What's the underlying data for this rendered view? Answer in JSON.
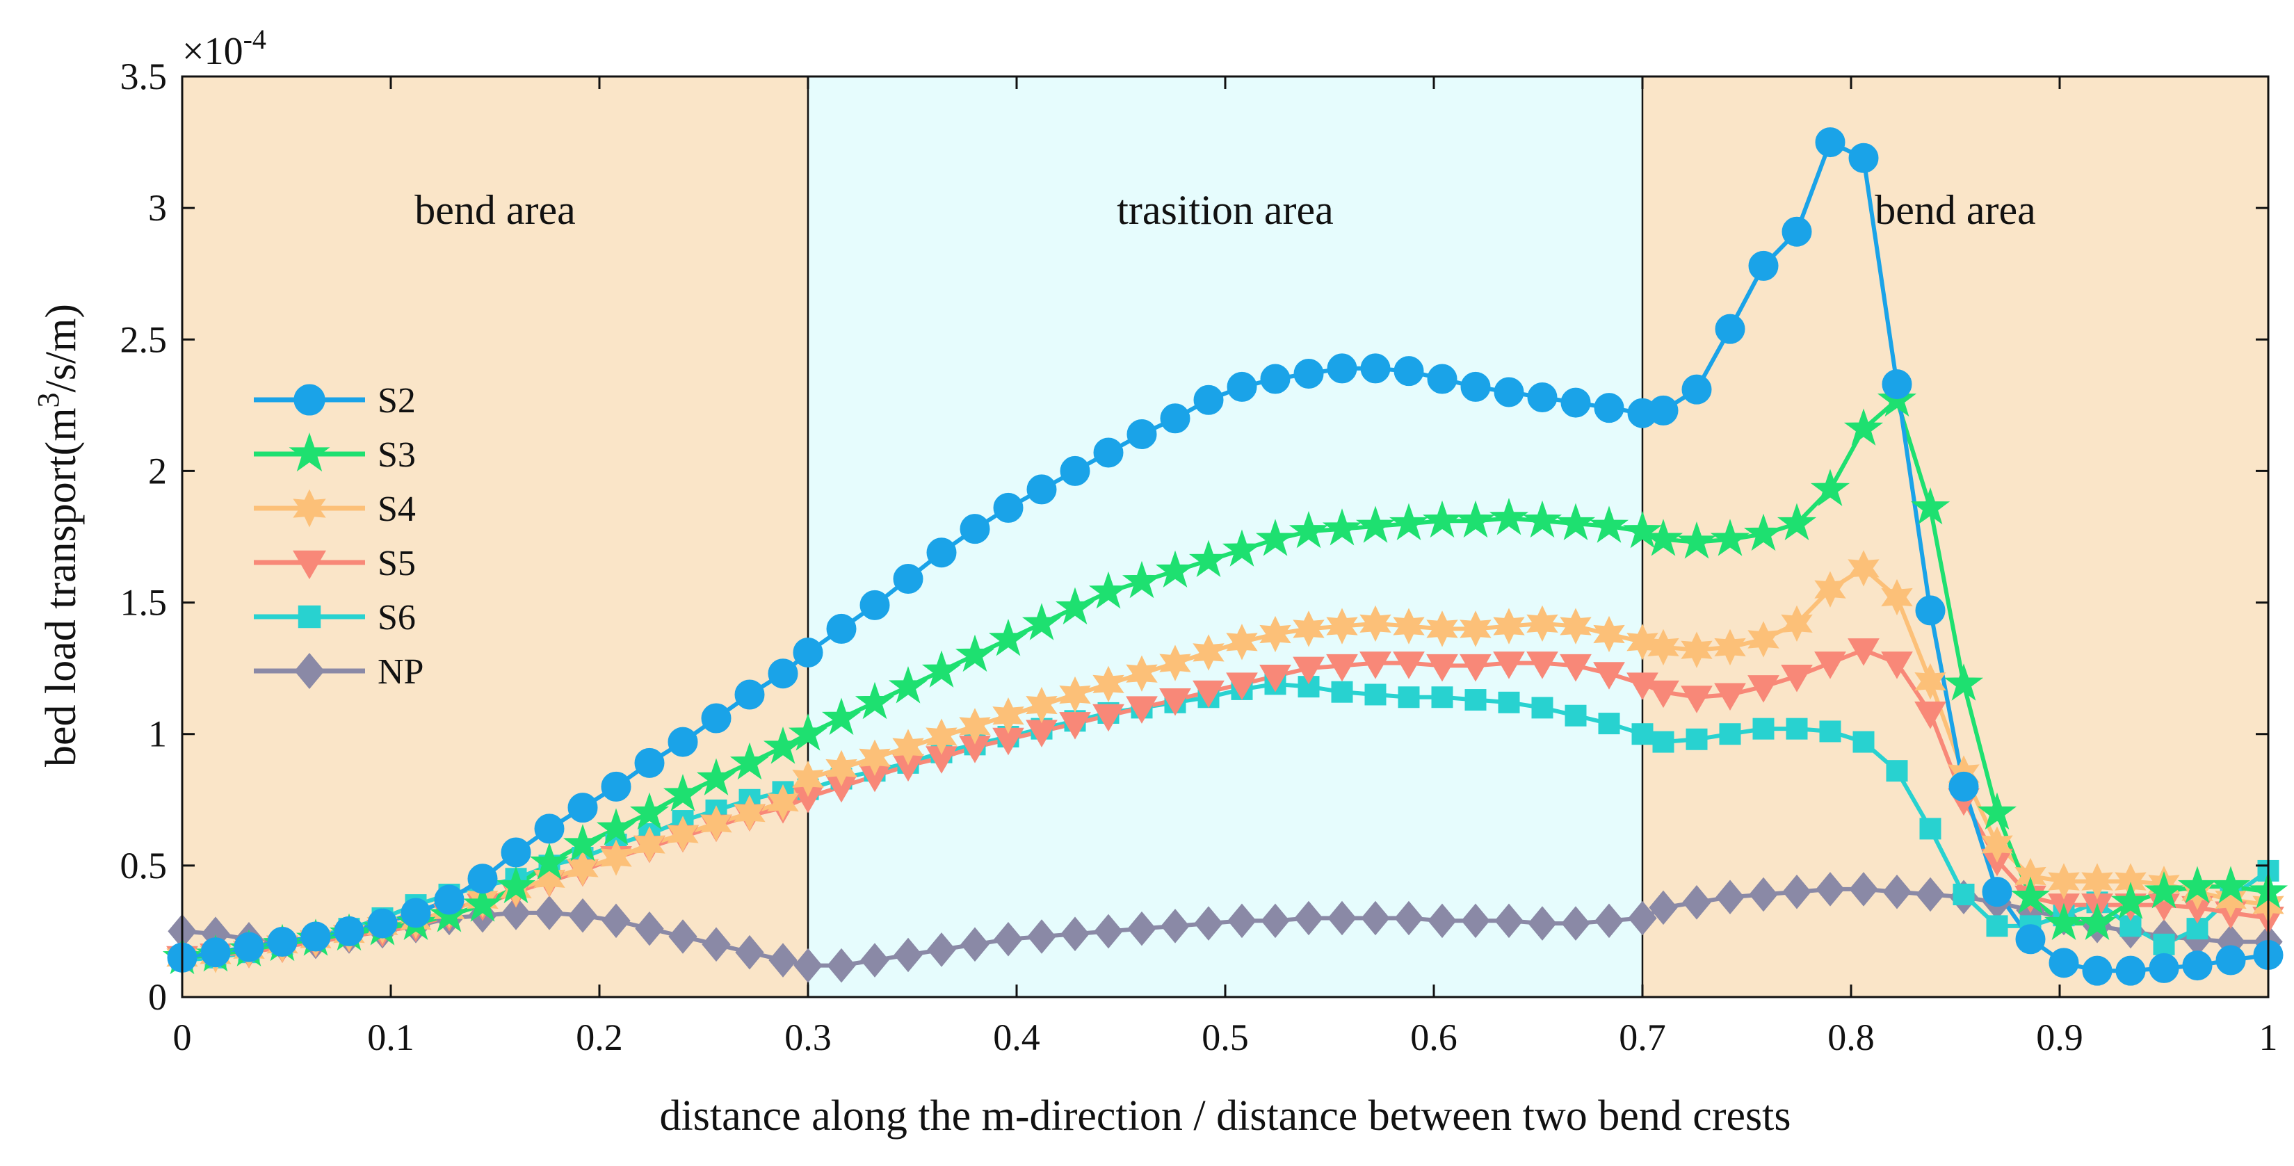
{
  "chart_data": {
    "type": "line",
    "title": "",
    "xlabel": "distance along the m-direction / distance between two bend crests",
    "ylabel_parts": {
      "prefix": "bed load transport(m",
      "sup": "3",
      "suffix": "/s/m)"
    },
    "y_exponent": {
      "base": "×10",
      "power": "-4"
    },
    "xlim": [
      0,
      1
    ],
    "ylim": [
      0,
      3.5
    ],
    "x_ticks": [
      0,
      0.1,
      0.2,
      0.3,
      0.4,
      0.5,
      0.6,
      0.7,
      0.8,
      0.9,
      1
    ],
    "x_tick_labels": [
      "0",
      "0.1",
      "0.2",
      "0.3",
      "0.4",
      "0.5",
      "0.6",
      "0.7",
      "0.8",
      "0.9",
      "1"
    ],
    "y_ticks": [
      0,
      0.5,
      1,
      1.5,
      2,
      2.5,
      3,
      3.5
    ],
    "y_tick_labels": [
      "0",
      "0.5",
      "1",
      "1.5",
      "2",
      "2.5",
      "3",
      "3.5"
    ],
    "regions": [
      {
        "label": "bend area",
        "x0": 0,
        "x1": 0.3,
        "color": "#fae5c8"
      },
      {
        "label": "trasition area",
        "x0": 0.3,
        "x1": 0.7,
        "color": "#e6fcfd"
      },
      {
        "label": "bend area",
        "x0": 0.7,
        "x1": 1,
        "color": "#fae5c8"
      }
    ],
    "legend_position": "center-left",
    "x": [
      0,
      0.016,
      0.032,
      0.048,
      0.064,
      0.08,
      0.096,
      0.112,
      0.128,
      0.144,
      0.16,
      0.176,
      0.192,
      0.208,
      0.224,
      0.24,
      0.256,
      0.272,
      0.288,
      0.3,
      0.316,
      0.332,
      0.348,
      0.364,
      0.38,
      0.396,
      0.412,
      0.428,
      0.444,
      0.46,
      0.476,
      0.492,
      0.508,
      0.524,
      0.54,
      0.556,
      0.572,
      0.588,
      0.604,
      0.62,
      0.636,
      0.652,
      0.668,
      0.684,
      0.7,
      0.71,
      0.726,
      0.742,
      0.758,
      0.774,
      0.79,
      0.806,
      0.822,
      0.838,
      0.854,
      0.87,
      0.886,
      0.902,
      0.918,
      0.934,
      0.95,
      0.966,
      0.982,
      1
    ],
    "series": [
      {
        "name": "S2",
        "color": "#1aa3e8",
        "marker": "circle",
        "values": [
          0.15,
          0.17,
          0.19,
          0.21,
          0.23,
          0.25,
          0.28,
          0.32,
          0.37,
          0.45,
          0.55,
          0.64,
          0.72,
          0.8,
          0.89,
          0.97,
          1.06,
          1.15,
          1.23,
          1.31,
          1.4,
          1.49,
          1.59,
          1.69,
          1.78,
          1.86,
          1.93,
          2.0,
          2.07,
          2.14,
          2.2,
          2.27,
          2.32,
          2.35,
          2.37,
          2.39,
          2.39,
          2.38,
          2.35,
          2.32,
          2.3,
          2.28,
          2.26,
          2.24,
          2.22,
          2.23,
          2.31,
          2.54,
          2.78,
          2.91,
          3.25,
          3.19,
          2.33,
          1.47,
          0.8,
          0.4,
          0.22,
          0.13,
          0.1,
          0.1,
          0.11,
          0.12,
          0.14,
          0.16
        ]
      },
      {
        "name": "S3",
        "color": "#1ee070",
        "marker": "star",
        "values": [
          0.15,
          0.16,
          0.18,
          0.2,
          0.22,
          0.24,
          0.26,
          0.28,
          0.31,
          0.35,
          0.42,
          0.51,
          0.58,
          0.64,
          0.7,
          0.77,
          0.83,
          0.89,
          0.95,
          1.0,
          1.06,
          1.12,
          1.18,
          1.24,
          1.3,
          1.36,
          1.42,
          1.48,
          1.54,
          1.58,
          1.62,
          1.66,
          1.7,
          1.74,
          1.77,
          1.78,
          1.79,
          1.8,
          1.81,
          1.81,
          1.82,
          1.81,
          1.8,
          1.79,
          1.77,
          1.74,
          1.73,
          1.74,
          1.76,
          1.8,
          1.93,
          2.16,
          2.27,
          1.86,
          1.19,
          0.7,
          0.38,
          0.28,
          0.28,
          0.36,
          0.4,
          0.42,
          0.42,
          0.4
        ]
      },
      {
        "name": "S4",
        "color": "#fcc078",
        "marker": "star6",
        "values": [
          0.15,
          0.16,
          0.18,
          0.2,
          0.22,
          0.24,
          0.27,
          0.29,
          0.33,
          0.37,
          0.41,
          0.45,
          0.49,
          0.53,
          0.58,
          0.62,
          0.66,
          0.7,
          0.74,
          0.83,
          0.87,
          0.91,
          0.95,
          0.99,
          1.03,
          1.07,
          1.11,
          1.15,
          1.19,
          1.23,
          1.27,
          1.31,
          1.35,
          1.38,
          1.4,
          1.41,
          1.42,
          1.41,
          1.4,
          1.4,
          1.41,
          1.42,
          1.41,
          1.38,
          1.35,
          1.33,
          1.32,
          1.33,
          1.36,
          1.42,
          1.55,
          1.63,
          1.52,
          1.2,
          0.85,
          0.58,
          0.46,
          0.44,
          0.44,
          0.44,
          0.43,
          0.4,
          0.37,
          0.35
        ]
      },
      {
        "name": "S5",
        "color": "#f88878",
        "marker": "triangle-down",
        "values": [
          0.15,
          0.16,
          0.17,
          0.19,
          0.21,
          0.23,
          0.25,
          0.27,
          0.31,
          0.35,
          0.4,
          0.44,
          0.48,
          0.53,
          0.57,
          0.61,
          0.65,
          0.69,
          0.72,
          0.76,
          0.8,
          0.84,
          0.88,
          0.91,
          0.95,
          0.98,
          1.01,
          1.04,
          1.07,
          1.1,
          1.13,
          1.16,
          1.19,
          1.22,
          1.25,
          1.26,
          1.27,
          1.27,
          1.26,
          1.26,
          1.27,
          1.27,
          1.26,
          1.23,
          1.19,
          1.16,
          1.14,
          1.15,
          1.18,
          1.22,
          1.27,
          1.32,
          1.27,
          1.08,
          0.75,
          0.52,
          0.38,
          0.35,
          0.35,
          0.35,
          0.35,
          0.34,
          0.32,
          0.3
        ]
      },
      {
        "name": "S6",
        "color": "#28d2d0",
        "marker": "square",
        "values": [
          0.14,
          0.15,
          0.17,
          0.2,
          0.23,
          0.26,
          0.3,
          0.35,
          0.39,
          0.42,
          0.45,
          0.5,
          0.53,
          0.58,
          0.62,
          0.67,
          0.71,
          0.75,
          0.78,
          0.79,
          0.83,
          0.86,
          0.89,
          0.93,
          0.96,
          0.99,
          1.02,
          1.05,
          1.08,
          1.1,
          1.12,
          1.14,
          1.17,
          1.19,
          1.18,
          1.16,
          1.15,
          1.14,
          1.14,
          1.13,
          1.12,
          1.1,
          1.07,
          1.04,
          1.0,
          0.97,
          0.98,
          1.0,
          1.02,
          1.02,
          1.01,
          0.97,
          0.86,
          0.64,
          0.39,
          0.27,
          0.27,
          0.31,
          0.36,
          0.27,
          0.2,
          0.26,
          0.38,
          0.48
        ]
      },
      {
        "name": "NP",
        "color": "#8a89a6",
        "marker": "diamond",
        "values": [
          0.25,
          0.24,
          0.22,
          0.2,
          0.21,
          0.23,
          0.25,
          0.27,
          0.3,
          0.31,
          0.32,
          0.32,
          0.31,
          0.29,
          0.26,
          0.23,
          0.2,
          0.17,
          0.14,
          0.12,
          0.12,
          0.14,
          0.16,
          0.18,
          0.2,
          0.22,
          0.23,
          0.24,
          0.25,
          0.26,
          0.27,
          0.28,
          0.29,
          0.29,
          0.3,
          0.3,
          0.3,
          0.3,
          0.29,
          0.29,
          0.29,
          0.28,
          0.28,
          0.29,
          0.3,
          0.34,
          0.36,
          0.38,
          0.39,
          0.4,
          0.41,
          0.41,
          0.4,
          0.39,
          0.38,
          0.36,
          0.33,
          0.3,
          0.27,
          0.25,
          0.23,
          0.22,
          0.21,
          0.21
        ]
      }
    ]
  }
}
